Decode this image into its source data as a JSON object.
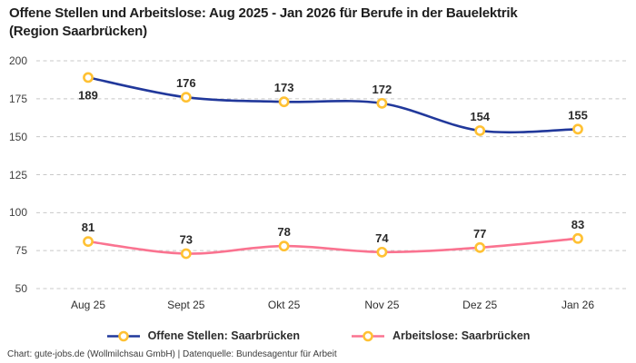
{
  "title": "Offene Stellen und Arbeitslose: Aug 2025 - Jan 2026 für Berufe in der Bauelektrik\n(Region Saarbrücken)",
  "footer": "Chart: gute-jobs.de (Wollmilchsau GmbH) | Datenquelle: Bundesagentur für Arbeit",
  "chart_data": {
    "type": "line",
    "title": "Offene Stellen und Arbeitslose: Aug 2025 - Jan 2026 für Berufe in der Bauelektrik (Region Saarbrücken)",
    "categories": [
      "Aug 25",
      "Sept 25",
      "Okt 25",
      "Nov 25",
      "Dez 25",
      "Jan 26"
    ],
    "series": [
      {
        "name": "Offene Stellen: Saarbrücken",
        "values": [
          189,
          176,
          173,
          172,
          154,
          155
        ],
        "color": "#21389b"
      },
      {
        "name": "Arbeitslose: Saarbrücken",
        "values": [
          81,
          73,
          78,
          74,
          77,
          83
        ],
        "color": "#fa7390"
      }
    ],
    "xlabel": "",
    "ylabel": "",
    "ylim": [
      50,
      200
    ],
    "yticks": [
      50,
      75,
      100,
      125,
      150,
      175,
      200
    ],
    "grid": true,
    "gridline_color": "#c8c8c8",
    "marker": {
      "fill": "#ffffff",
      "stroke": "#ffc133"
    },
    "legend_position": "bottom",
    "curve": "smooth"
  }
}
